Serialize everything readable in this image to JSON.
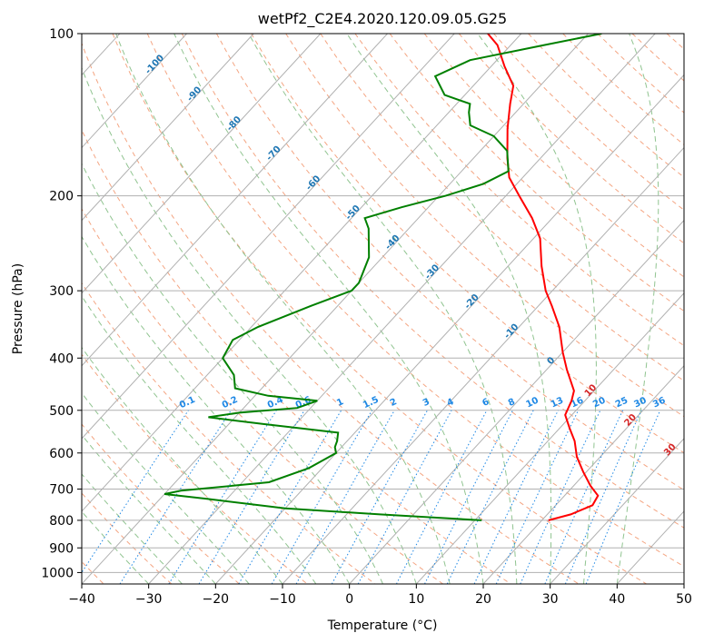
{
  "chart_data": {
    "type": "line",
    "chart_kind": "skew-T log-p diagram",
    "title": "wetPf2_C2E4.2020.120.09.05.G25",
    "xlabel": "Temperature (°C)",
    "ylabel": "Pressure (hPa)",
    "xlim": [
      -40,
      50
    ],
    "ylim": [
      1050,
      100
    ],
    "y_scale": "log",
    "grid": true,
    "x_ticks": [
      -40,
      -30,
      -20,
      -10,
      0,
      10,
      20,
      30,
      40,
      50
    ],
    "y_ticks": [
      100,
      200,
      300,
      400,
      500,
      600,
      700,
      800,
      900,
      1000
    ],
    "series": [
      {
        "color": "#ff0000",
        "points": [
          {
            "p": 800,
            "t": 21
          },
          {
            "p": 780,
            "t": 23.5
          },
          {
            "p": 750,
            "t": 25.5
          },
          {
            "p": 720,
            "t": 25
          },
          {
            "p": 690,
            "t": 22.5
          },
          {
            "p": 650,
            "t": 19.5
          },
          {
            "p": 610,
            "t": 16.5
          },
          {
            "p": 570,
            "t": 14
          },
          {
            "p": 540,
            "t": 11.5
          },
          {
            "p": 510,
            "t": 9
          },
          {
            "p": 480,
            "t": 8
          },
          {
            "p": 460,
            "t": 7
          },
          {
            "p": 420,
            "t": 3
          },
          {
            "p": 390,
            "t": 0
          },
          {
            "p": 350,
            "t": -4
          },
          {
            "p": 320,
            "t": -8
          },
          {
            "p": 300,
            "t": -11
          },
          {
            "p": 270,
            "t": -15
          },
          {
            "p": 240,
            "t": -19
          },
          {
            "p": 220,
            "t": -23
          },
          {
            "p": 200,
            "t": -28
          },
          {
            "p": 185,
            "t": -32
          },
          {
            "p": 170,
            "t": -35
          },
          {
            "p": 150,
            "t": -39
          },
          {
            "p": 135,
            "t": -42
          },
          {
            "p": 125,
            "t": -44
          },
          {
            "p": 115,
            "t": -48
          },
          {
            "p": 105,
            "t": -52
          },
          {
            "p": 100,
            "t": -55
          }
        ]
      },
      {
        "color": "#008000",
        "points": [
          {
            "p": 800,
            "t": 11
          },
          {
            "p": 780,
            "t": -5
          },
          {
            "p": 760,
            "t": -20
          },
          {
            "p": 730,
            "t": -33
          },
          {
            "p": 715,
            "t": -40
          },
          {
            "p": 705,
            "t": -38
          },
          {
            "p": 680,
            "t": -26
          },
          {
            "p": 640,
            "t": -22
          },
          {
            "p": 600,
            "t": -20
          },
          {
            "p": 585,
            "t": -21
          },
          {
            "p": 570,
            "t": -21.5
          },
          {
            "p": 550,
            "t": -22.5
          },
          {
            "p": 530,
            "t": -35
          },
          {
            "p": 515,
            "t": -44
          },
          {
            "p": 505,
            "t": -40
          },
          {
            "p": 495,
            "t": -32
          },
          {
            "p": 480,
            "t": -30
          },
          {
            "p": 470,
            "t": -38
          },
          {
            "p": 455,
            "t": -44
          },
          {
            "p": 430,
            "t": -46
          },
          {
            "p": 400,
            "t": -50
          },
          {
            "p": 370,
            "t": -51
          },
          {
            "p": 350,
            "t": -49
          },
          {
            "p": 320,
            "t": -44
          },
          {
            "p": 300,
            "t": -40
          },
          {
            "p": 290,
            "t": -40
          },
          {
            "p": 260,
            "t": -42
          },
          {
            "p": 230,
            "t": -46
          },
          {
            "p": 220,
            "t": -48
          },
          {
            "p": 210,
            "t": -44
          },
          {
            "p": 200,
            "t": -39
          },
          {
            "p": 190,
            "t": -35
          },
          {
            "p": 180,
            "t": -33
          },
          {
            "p": 165,
            "t": -36
          },
          {
            "p": 155,
            "t": -40
          },
          {
            "p": 148,
            "t": -45
          },
          {
            "p": 140,
            "t": -47
          },
          {
            "p": 135,
            "t": -48
          },
          {
            "p": 130,
            "t": -53
          },
          {
            "p": 120,
            "t": -57
          },
          {
            "p": 112,
            "t": -54
          },
          {
            "p": 105,
            "t": -45
          },
          {
            "p": 100,
            "t": -38
          }
        ]
      }
    ],
    "mixing_ratio_labels": [
      "0.1",
      "0.2",
      "0.4",
      "0.6",
      "1",
      "1.5",
      "2",
      "3",
      "4",
      "6",
      "8",
      "10",
      "13",
      "16",
      "20",
      "25",
      "30",
      "36"
    ],
    "isotherm_labels": [
      "-100",
      "-90",
      "-80",
      "-70",
      "-60",
      "-50",
      "-40",
      "-30",
      "-20",
      "-10",
      "0",
      "10",
      "20",
      "30",
      "40"
    ],
    "colors": {
      "temperature": "#ff0000",
      "dewpoint": "#008000",
      "isotherm_label_cold": "#1f77b4",
      "isotherm_label_warm": "#d62728",
      "mixing_ratio": "#1e88e5",
      "dry_adiabat": "#f4a582",
      "moist_adiabat": "#90c490",
      "grid": "#b0b0b0"
    }
  }
}
